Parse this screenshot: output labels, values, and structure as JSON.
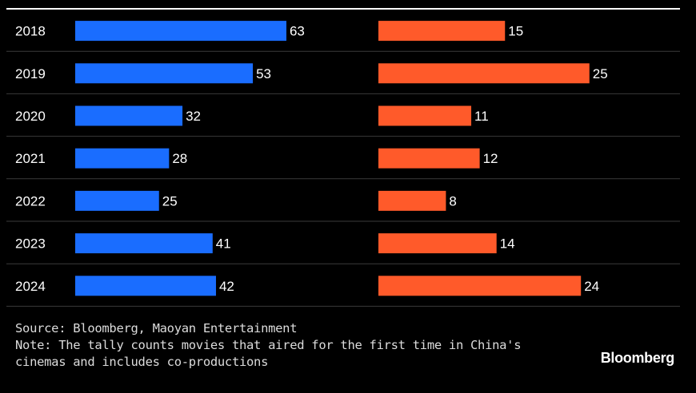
{
  "chart_data": {
    "type": "bar",
    "categories": [
      "2018",
      "2019",
      "2020",
      "2021",
      "2022",
      "2023",
      "2024"
    ],
    "series": [
      {
        "values": [
          63,
          53,
          32,
          28,
          25,
          41,
          42
        ],
        "color": "#1a6dff"
      },
      {
        "values": [
          15,
          25,
          11,
          12,
          8,
          14,
          24
        ],
        "color": "#ff5a2a"
      }
    ]
  },
  "colors": {
    "background": "#000000",
    "divider": "#3a3a3a",
    "top_rule": "#ffffff",
    "text": "#ffffff"
  },
  "footer": {
    "source": "Source: Bloomberg, Maoyan Entertainment",
    "note_line1": "Note: The tally counts movies that aired for the first time in China's",
    "note_line2": "cinemas and includes co-productions"
  },
  "logo": "Bloomberg"
}
